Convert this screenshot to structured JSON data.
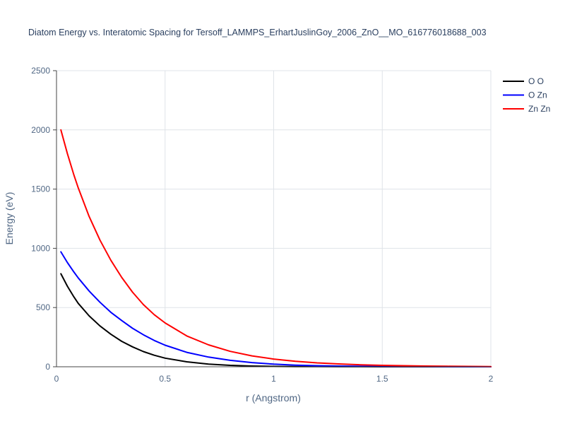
{
  "chart_data": {
    "type": "line",
    "title": "Diatom Energy vs. Interatomic Spacing for Tersoff_LAMMPS_ErhartJuslinGoy_2006_ZnO__MO_616776018688_003",
    "xlabel": "r (Angstrom)",
    "ylabel": "Energy (eV)",
    "xlim": [
      0,
      2
    ],
    "ylim": [
      0,
      2500
    ],
    "xticks": [
      0,
      0.5,
      1,
      1.5,
      2
    ],
    "xtick_labels": [
      "0",
      "0.5",
      "1",
      "1.5",
      "2"
    ],
    "yticks": [
      0,
      500,
      1000,
      1500,
      2000,
      2500
    ],
    "ytick_labels": [
      "0",
      "500",
      "1000",
      "1500",
      "2000",
      "2500"
    ],
    "grid": true,
    "legend_position": "top-right",
    "x": [
      0.02,
      0.05,
      0.08,
      0.1,
      0.15,
      0.2,
      0.25,
      0.3,
      0.35,
      0.4,
      0.45,
      0.5,
      0.6,
      0.7,
      0.8,
      0.9,
      1.0,
      1.1,
      1.2,
      1.3,
      1.4,
      1.5,
      1.6,
      1.7,
      1.8,
      1.9,
      2.0
    ],
    "series": [
      {
        "name": "O O",
        "color": "#000000",
        "values": [
          785,
          680,
          590,
          535,
          430,
          345,
          275,
          215,
          168,
          128,
          97,
          73,
          42,
          22,
          12,
          6,
          3,
          1.5,
          1,
          0.5,
          0.3,
          0.2,
          0.1,
          0,
          0,
          0,
          0
        ]
      },
      {
        "name": "O Zn",
        "color": "#0000ff",
        "values": [
          970,
          880,
          800,
          750,
          640,
          545,
          460,
          390,
          325,
          270,
          222,
          182,
          122,
          82,
          54,
          35,
          22,
          14,
          9,
          6,
          4,
          2.5,
          1.5,
          1,
          0.6,
          0.3,
          0.2
        ]
      },
      {
        "name": "Zn Zn",
        "color": "#ff0000",
        "values": [
          2000,
          1800,
          1620,
          1510,
          1270,
          1070,
          900,
          755,
          630,
          525,
          440,
          370,
          260,
          185,
          130,
          92,
          65,
          46,
          33,
          24,
          17,
          12,
          9,
          6,
          4,
          3,
          2
        ]
      }
    ]
  }
}
